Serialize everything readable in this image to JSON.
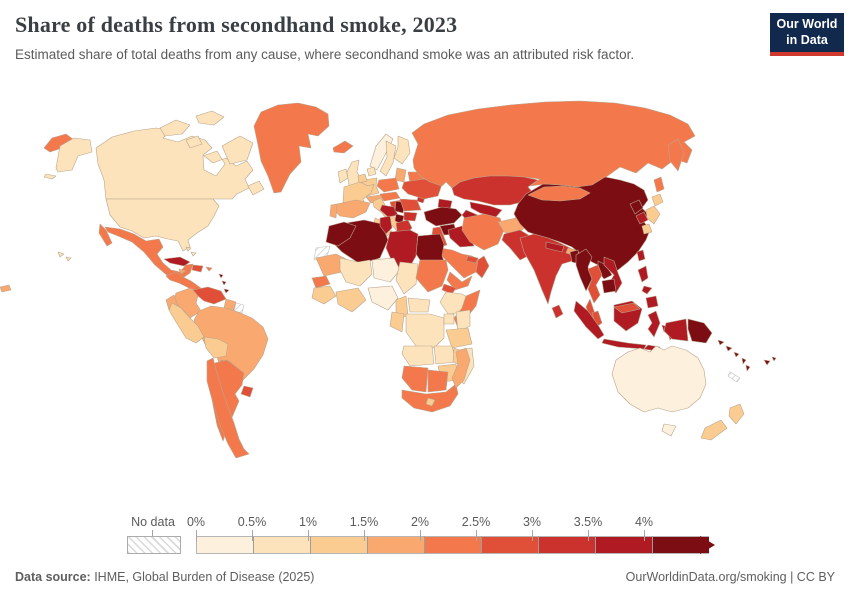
{
  "header": {
    "title": "Share of deaths from secondhand smoke, 2023",
    "subtitle": "Estimated share of total deaths from any cause, where secondhand smoke was an attributed risk factor."
  },
  "logo": {
    "line1": "Our World",
    "line2": "in Data",
    "bg": "#12294e",
    "accent": "#d1392f"
  },
  "legend": {
    "no_data_label": "No data",
    "ticks": [
      "0%",
      "0.5%",
      "1%",
      "1.5%",
      "2%",
      "2.5%",
      "3%",
      "3.5%",
      "4%"
    ]
  },
  "footer": {
    "source_label": "Data source:",
    "source_value": " IHME, Global Burden of Disease (2025)",
    "right_text": "OurWorldinData.org/smoking | CC BY"
  },
  "map": {
    "stroke": "#b8a58e",
    "ocean": "#ffffff"
  },
  "chart_data": {
    "type": "choropleth",
    "title": "Share of deaths from secondhand smoke, 2023",
    "unit": "%",
    "bin_edges_pct": [
      0,
      0.5,
      1,
      1.5,
      2,
      2.5,
      3,
      3.5,
      4
    ],
    "bin_labels": [
      "0-0.5%",
      "0.5-1%",
      "1-1.5%",
      "1.5-2%",
      "2-2.5%",
      "2.5-3%",
      "3-3.5%",
      "3.5-4%",
      "4%+"
    ],
    "bin_colors": [
      "#fdf0dc",
      "#fce3bb",
      "#fbcc92",
      "#f9a870",
      "#f3794c",
      "#e05038",
      "#cb322d",
      "#b01b23",
      "#7c0d12"
    ],
    "no_data": "hatched",
    "country_bins": {
      "usa": 1,
      "canada": 1,
      "greenland": 4,
      "iceland": 4,
      "mexico": 4,
      "central-america": 4,
      "cuba": 7,
      "jamaica": 3,
      "hispaniola": 5,
      "puerto-rico": 4,
      "bahamas": 1,
      "lesser-antilles": 8,
      "trinidad": 8,
      "colombia": 3,
      "venezuela": 5,
      "guyana": 3,
      "suriname": "nd",
      "brazil": 3,
      "ecuador": 3,
      "peru": 2,
      "bolivia": 2,
      "paraguay": 4,
      "chile": 4,
      "argentina": 4,
      "uruguay": 5,
      "pacific-wrap": 3,
      "ireland": 1,
      "uk": 1,
      "norway": 0,
      "sweden": 1,
      "finland": 1,
      "denmark": 1,
      "baltics": 3,
      "belarus": 4,
      "poland": 4,
      "germany": 2,
      "benelux": 2,
      "france": 2,
      "spain": 3,
      "portugal": 3,
      "italy": 2,
      "switzerland-austria": 3,
      "czech-slovakia": 4,
      "hungary": 5,
      "croatia-bosnia": 7,
      "serbia": 8,
      "albania-macedonia": 8,
      "greece": 6,
      "bulgaria": 6,
      "romania": 5,
      "moldova": 6,
      "ukraine": 5,
      "russia": 4,
      "kazakhstan": 6,
      "caucasus": 7,
      "uzbekistan": 7,
      "turkmenistan": 7,
      "kyrgyzstan": 7,
      "tajikistan": 7,
      "turkey": 8,
      "cyprus": 4,
      "syria": 8,
      "levant": 5,
      "iraq": 7,
      "iran": 4,
      "afghanistan": 3,
      "pakistan": 6,
      "saudi-arabia": 4,
      "yemen": 4,
      "oman": 5,
      "uae": 5,
      "morocco": 8,
      "western-sahara": "nd",
      "algeria": 8,
      "tunisia": 7,
      "libya": 7,
      "egypt": 8,
      "mauritania": 3,
      "senegal": 4,
      "mali": 1,
      "niger": 0,
      "chad": 1,
      "sudan": 4,
      "eritrea": 5,
      "ethiopia": 1,
      "somalia": 4,
      "guinea": 2,
      "ghana-ivory": 2,
      "nigeria": 0,
      "cameroon": 2,
      "car": 1,
      "drc": 1,
      "congo-gabon": 2,
      "uganda": 1,
      "kenya": 1,
      "tanzania": 2,
      "angola": 1,
      "zambia": 1,
      "malawi": 2,
      "mozambique": 1,
      "zimbabwe": 2,
      "namibia": 4,
      "botswana": 4,
      "south-africa": 4,
      "lesotho": 2,
      "madagascar": 3,
      "india": 6,
      "nepal": 7,
      "bhutan": 3,
      "bangladesh": 8,
      "sri-lanka": 6,
      "china": 8,
      "mongolia": 4,
      "north-korea": 8,
      "south-korea": 7,
      "japan": 2,
      "taiwan": 7,
      "myanmar": 8,
      "thailand": 5,
      "laos": 8,
      "vietnam": 7,
      "cambodia": 8,
      "malaysia": 5,
      "indonesia": 7,
      "png": 8,
      "philippines": 7,
      "solomon-islands": 8,
      "vanuatu": 8,
      "fiji": 8,
      "new-caledonia": "nd",
      "australia": 0,
      "new-zealand": 2
    }
  }
}
